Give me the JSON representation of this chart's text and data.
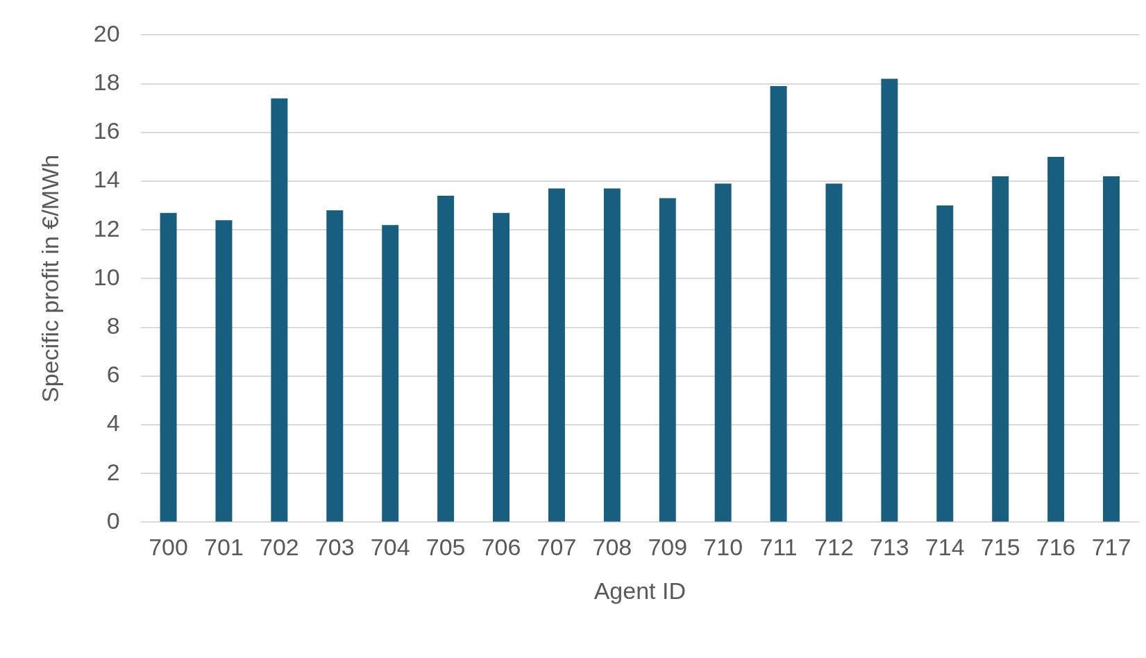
{
  "chart_data": {
    "type": "bar",
    "xlabel": "Agent ID",
    "ylabel": "Specific profit in €/MWh",
    "categories": [
      "700",
      "701",
      "702",
      "703",
      "704",
      "705",
      "706",
      "707",
      "708",
      "709",
      "710",
      "711",
      "712",
      "713",
      "714",
      "715",
      "716",
      "717"
    ],
    "values": [
      12.7,
      12.4,
      17.4,
      12.8,
      12.2,
      13.4,
      12.7,
      13.7,
      13.7,
      13.3,
      13.9,
      17.9,
      13.9,
      18.2,
      13.0,
      14.2,
      15.0,
      14.2
    ],
    "color": "#175e7f",
    "ylim": [
      0,
      20
    ],
    "yticks": [
      0,
      2,
      4,
      6,
      8,
      10,
      12,
      14,
      16,
      18,
      20
    ],
    "grid": "y",
    "legend": false
  }
}
